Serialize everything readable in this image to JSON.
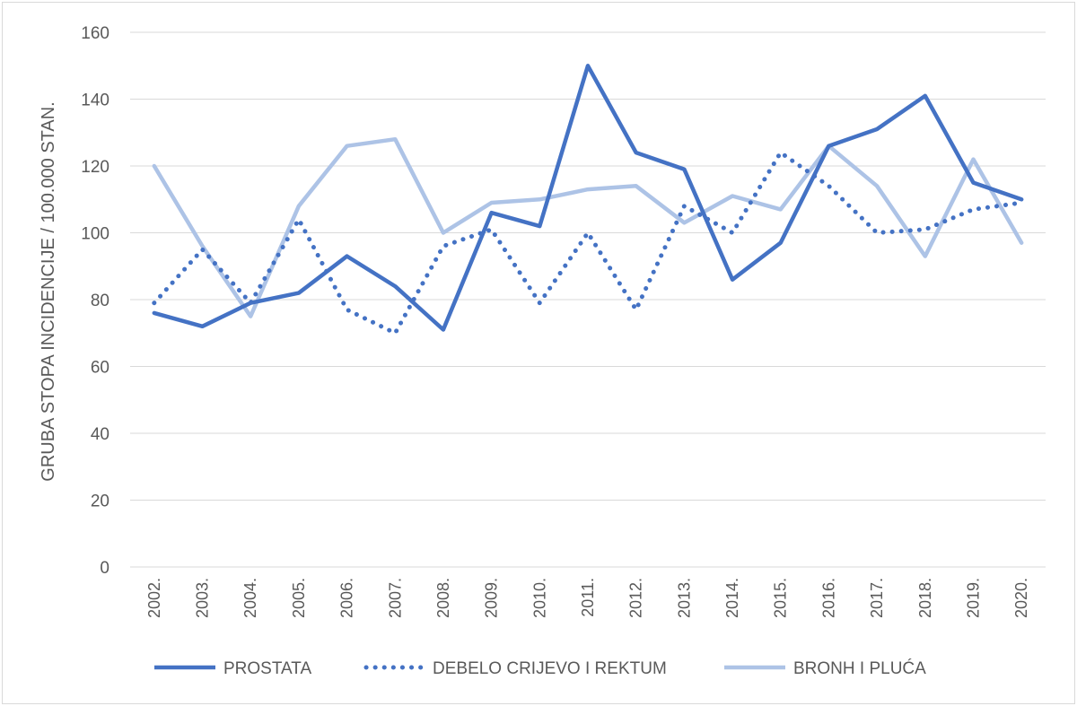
{
  "chart_data": {
    "type": "line",
    "title": "",
    "xlabel": "",
    "ylabel": "GRUBA STOPA INCIDENCIJE / 100.000 STAN.",
    "ylim": [
      0,
      160
    ],
    "yticks": [
      0,
      20,
      40,
      60,
      80,
      100,
      120,
      140,
      160
    ],
    "grid": true,
    "legend_position": "bottom",
    "categories": [
      "2002.",
      "2003.",
      "2004.",
      "2005.",
      "2006.",
      "2007.",
      "2008.",
      "2009.",
      "2010.",
      "2011.",
      "2012.",
      "2013.",
      "2014.",
      "2015.",
      "2016.",
      "2017.",
      "2018.",
      "2019.",
      "2020."
    ],
    "series": [
      {
        "name": "PROSTATA",
        "color": "#4472c4",
        "style": "solid",
        "values": [
          76,
          72,
          79,
          82,
          93,
          84,
          71,
          106,
          102,
          150,
          124,
          119,
          86,
          97,
          126,
          131,
          141,
          115,
          110
        ]
      },
      {
        "name": "DEBELO CRIJEVO I REKTUM",
        "color": "#4472c4",
        "style": "dotted",
        "values": [
          79,
          95,
          79,
          104,
          77,
          70,
          96,
          101,
          79,
          100,
          77,
          108,
          100,
          124,
          114,
          100,
          101,
          107,
          109
        ]
      },
      {
        "name": "BRONH I PLUĆA",
        "color": "#adc3e6",
        "style": "solid",
        "values": [
          120,
          96,
          75,
          108,
          126,
          128,
          100,
          109,
          110,
          113,
          114,
          103,
          111,
          107,
          126,
          114,
          93,
          122,
          97
        ]
      }
    ]
  }
}
